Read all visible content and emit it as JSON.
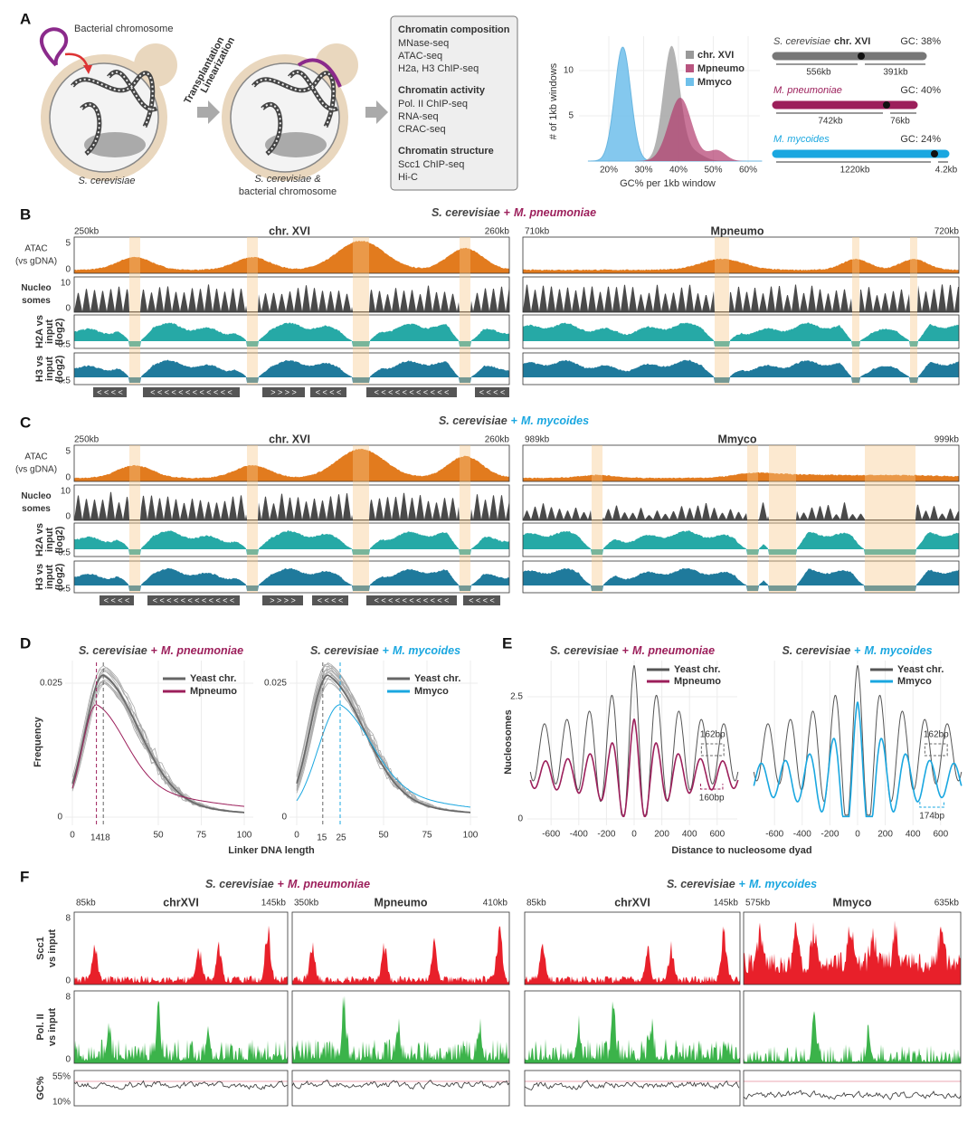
{
  "panel_a": {
    "label": "A",
    "bacterial_chromosome": "Bacterial chromosome",
    "step_1": "Transplantation",
    "step_2": "Linearization",
    "host": "S. cerevisiae",
    "result_host": "S. cerevisiae &",
    "result_bacterial": "bacterial chromosome",
    "assays": [
      {
        "heading": "Chromatin composition",
        "items": [
          "MNase-seq",
          "ATAC-seq",
          "H2a, H3 ChIP-seq"
        ]
      },
      {
        "heading": "Chromatin activity",
        "items": [
          "Pol. II ChIP-seq",
          "RNA-seq",
          "CRAC-seq"
        ]
      },
      {
        "heading": "Chromatin structure",
        "items": [
          "Scc1 ChIP-seq",
          "Hi-C"
        ]
      }
    ],
    "histogram": {
      "y_label": "# of 1kb windows",
      "x_label": "GC% per 1kb window",
      "yticks": [
        "10",
        "5"
      ],
      "xticks": [
        "20%",
        "30%",
        "40%",
        "50%",
        "60%"
      ],
      "legend": [
        "chr. XVI",
        "Mpneumo",
        "Mmyco"
      ]
    },
    "chromosomes": [
      {
        "species": "S. cerevisiae",
        "name": "chr. XVI",
        "gc": "GC: 38%",
        "arm_left": "556kb",
        "arm_right": "391kb"
      },
      {
        "species": "M. pneumoniae",
        "gc": "GC: 40%",
        "arm_left": "742kb",
        "arm_right": "76kb"
      },
      {
        "species": "M. mycoides",
        "gc": "GC: 24%",
        "arm_left": "1220kb",
        "arm_right": "4.2kb"
      }
    ]
  },
  "panel_b": {
    "label": "B",
    "title": {
      "host": "S. cerevisiae",
      "plus": "+",
      "guest": "M. pneumoniae"
    },
    "left": {
      "start": "250kb",
      "name": "chr. XVI",
      "end": "260kb"
    },
    "right": {
      "start": "710kb",
      "name": "Mpneumo",
      "end": "720kb"
    },
    "tracks": [
      {
        "label": [
          "ATAC",
          "(vs gDNA)"
        ],
        "ticks": [
          "5",
          "0"
        ]
      },
      {
        "label": [
          "Nucleo",
          "somes"
        ],
        "ticks": [
          "10",
          "0"
        ]
      },
      {
        "label": [
          "H2A vs",
          "input",
          "(log2)"
        ],
        "ticks": [
          "-0.5"
        ]
      },
      {
        "label": [
          "H3 vs",
          "input",
          "(log2)"
        ],
        "ticks": [
          "-0.5"
        ]
      }
    ],
    "genes": [
      "< < < <",
      "< < < < < < < < < < < <",
      "> > > >",
      "< < < <",
      "< < < < < < < < < < <",
      "< < < <"
    ]
  },
  "panel_c": {
    "label": "C",
    "title": {
      "host": "S. cerevisiae",
      "plus": "+",
      "guest": "M. mycoides"
    },
    "left": {
      "start": "250kb",
      "name": "chr. XVI",
      "end": "260kb"
    },
    "right": {
      "start": "989kb",
      "name": "Mmyco",
      "end": "999kb"
    },
    "tracks": [
      {
        "label": [
          "ATAC",
          "(vs gDNA)"
        ],
        "ticks": [
          "5",
          "0"
        ]
      },
      {
        "label": [
          "Nucleo",
          "somes"
        ],
        "ticks": [
          "10",
          "0"
        ]
      },
      {
        "label": [
          "H2A vs",
          "input",
          "(log2)"
        ],
        "ticks": [
          "-0.5"
        ]
      },
      {
        "label": [
          "H3 vs",
          "input",
          "(log2)"
        ],
        "ticks": [
          "-0.5"
        ]
      }
    ],
    "genes": [
      "< < < <",
      "< < < < < < < < < < < <",
      "> > > >",
      "< < < <",
      "< < < < < < < < < < <",
      "< < < <"
    ]
  },
  "panel_d": {
    "label": "D",
    "y_label": "Frequency",
    "x_label": "Linker DNA length",
    "plots": [
      {
        "title": {
          "host": "S. cerevisiae",
          "plus": "+",
          "guest": "M. pneumoniae"
        },
        "legend": [
          "Yeast chr.",
          "Mpneumo"
        ],
        "yticks": [
          "0.025",
          "0"
        ],
        "xticks": [
          "0",
          "50",
          "75",
          "100"
        ],
        "guest_peak": "14",
        "yeast_peak": "18"
      },
      {
        "title": {
          "host": "S. cerevisiae",
          "plus": "+",
          "guest": "M. mycoides"
        },
        "legend": [
          "Yeast chr.",
          "Mmyco"
        ],
        "yticks": [
          "0.025",
          "0"
        ],
        "xticks": [
          "0",
          "50",
          "75",
          "100"
        ],
        "guest_peak": "25",
        "yeast_peak": "15"
      }
    ]
  },
  "panel_e": {
    "label": "E",
    "y_label": "Nucleosomes",
    "x_label": "Distance to nucleosome dyad",
    "plots": [
      {
        "title": {
          "host": "S. cerevisiae",
          "plus": "+",
          "guest": "M. pneumoniae"
        },
        "legend": [
          "Yeast chr.",
          "Mpneumo"
        ],
        "yticks": [
          "2.5",
          "0"
        ],
        "xticks": [
          "-600",
          "-400",
          "-200",
          "0",
          "200",
          "400",
          "600"
        ],
        "yeast_repeat": "162bp",
        "guest_repeat": "160bp"
      },
      {
        "title": {
          "host": "S. cerevisiae",
          "plus": "+",
          "guest": "M. mycoides"
        },
        "legend": [
          "Yeast chr.",
          "Mmyco"
        ],
        "yticks": [],
        "xticks": [
          "-600",
          "-400",
          "-200",
          "0",
          "200",
          "400",
          "600"
        ],
        "yeast_repeat": "162bp",
        "guest_repeat": "174bp"
      }
    ]
  },
  "panel_f": {
    "label": "F",
    "titles": [
      {
        "host": "S. cerevisiae",
        "plus": "+",
        "guest": "M. pneumoniae"
      },
      {
        "host": "S. cerevisiae",
        "plus": "+",
        "guest": "M. mycoides"
      }
    ],
    "columns": [
      {
        "start": "85kb",
        "name": "chrXVI",
        "end": "145kb"
      },
      {
        "start": "350kb",
        "name": "Mpneumo",
        "end": "410kb"
      },
      {
        "start": "85kb",
        "name": "chrXVI",
        "end": "145kb"
      },
      {
        "start": "575kb",
        "name": "Mmyco",
        "end": "635kb"
      }
    ],
    "tracks": [
      {
        "label": [
          "Scc1",
          "vs input"
        ],
        "ticks": [
          "8",
          "0"
        ]
      },
      {
        "label": [
          "Pol. II",
          "vs input"
        ],
        "ticks": [
          "8",
          "0"
        ]
      },
      {
        "label": [
          "GC%"
        ],
        "ticks": [
          "55%",
          "10%"
        ]
      }
    ]
  }
}
